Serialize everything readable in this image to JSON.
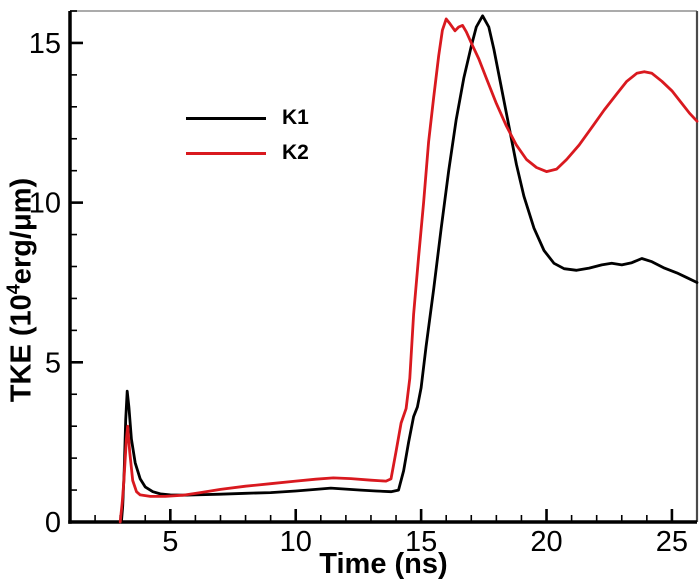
{
  "chart_data": {
    "type": "line",
    "title": "",
    "xlabel": "Time (ns)",
    "ylabel": {
      "prefix": "TKE (10",
      "sup": "4",
      "suffix": "erg/μm)"
    },
    "xlim": [
      1,
      26
    ],
    "ylim": [
      0,
      16
    ],
    "grid": false,
    "x_major_ticks": [
      {
        "value": 5,
        "label": "5"
      },
      {
        "value": 10,
        "label": "10"
      },
      {
        "value": 15,
        "label": "15"
      },
      {
        "value": 20,
        "label": "20"
      },
      {
        "value": 25,
        "label": "25"
      }
    ],
    "x_minor_ticks": [
      2,
      3,
      4,
      6,
      7,
      8,
      9,
      11,
      12,
      13,
      14,
      16,
      17,
      18,
      19,
      21,
      22,
      23,
      24
    ],
    "y_major_ticks": [
      {
        "value": 0,
        "label": "0"
      },
      {
        "value": 5,
        "label": "5"
      },
      {
        "value": 10,
        "label": "10"
      },
      {
        "value": 15,
        "label": "15"
      }
    ],
    "y_minor_ticks": [
      1,
      2,
      3,
      4,
      6,
      7,
      8,
      9,
      11,
      12,
      13,
      14,
      16
    ],
    "axis_color": "#000000",
    "top_border_color": "#ababab",
    "right_border_color": "#4a4a4a",
    "legend": {
      "position": "upper-left-inside",
      "entries": [
        {
          "name": "K1",
          "color": "#000000"
        },
        {
          "name": "K2",
          "color": "#d9191f"
        }
      ]
    },
    "series": [
      {
        "name": "K1",
        "color": "#000000",
        "points": [
          [
            3.05,
            0.0
          ],
          [
            3.1,
            0.5
          ],
          [
            3.16,
            1.6
          ],
          [
            3.22,
            3.2
          ],
          [
            3.28,
            4.1
          ],
          [
            3.35,
            3.6
          ],
          [
            3.45,
            2.6
          ],
          [
            3.6,
            1.85
          ],
          [
            3.8,
            1.35
          ],
          [
            4.0,
            1.1
          ],
          [
            4.3,
            0.95
          ],
          [
            4.6,
            0.88
          ],
          [
            5.0,
            0.85
          ],
          [
            5.5,
            0.84
          ],
          [
            6.0,
            0.85
          ],
          [
            7.0,
            0.87
          ],
          [
            8.0,
            0.9
          ],
          [
            9.0,
            0.92
          ],
          [
            10.0,
            0.97
          ],
          [
            10.8,
            1.02
          ],
          [
            11.4,
            1.06
          ],
          [
            12.0,
            1.03
          ],
          [
            12.6,
            1.0
          ],
          [
            13.2,
            0.97
          ],
          [
            13.8,
            0.95
          ],
          [
            14.1,
            1.0
          ],
          [
            14.3,
            1.6
          ],
          [
            14.5,
            2.5
          ],
          [
            14.7,
            3.3
          ],
          [
            14.85,
            3.6
          ],
          [
            15.0,
            4.2
          ],
          [
            15.2,
            5.5
          ],
          [
            15.5,
            7.3
          ],
          [
            15.8,
            9.2
          ],
          [
            16.1,
            11.0
          ],
          [
            16.4,
            12.6
          ],
          [
            16.7,
            13.9
          ],
          [
            17.0,
            14.9
          ],
          [
            17.2,
            15.5
          ],
          [
            17.45,
            15.85
          ],
          [
            17.7,
            15.5
          ],
          [
            17.9,
            14.8
          ],
          [
            18.2,
            13.6
          ],
          [
            18.5,
            12.4
          ],
          [
            18.8,
            11.2
          ],
          [
            19.1,
            10.2
          ],
          [
            19.5,
            9.2
          ],
          [
            19.9,
            8.5
          ],
          [
            20.3,
            8.1
          ],
          [
            20.7,
            7.93
          ],
          [
            21.2,
            7.88
          ],
          [
            21.7,
            7.95
          ],
          [
            22.2,
            8.05
          ],
          [
            22.6,
            8.1
          ],
          [
            23.0,
            8.05
          ],
          [
            23.4,
            8.12
          ],
          [
            23.8,
            8.25
          ],
          [
            24.2,
            8.15
          ],
          [
            24.7,
            7.95
          ],
          [
            25.2,
            7.8
          ],
          [
            25.6,
            7.65
          ],
          [
            26.0,
            7.5
          ]
        ]
      },
      {
        "name": "K2",
        "color": "#d9191f",
        "points": [
          [
            3.0,
            0.0
          ],
          [
            3.08,
            0.6
          ],
          [
            3.15,
            1.3
          ],
          [
            3.25,
            2.6
          ],
          [
            3.3,
            3.0
          ],
          [
            3.38,
            2.2
          ],
          [
            3.5,
            1.3
          ],
          [
            3.65,
            0.95
          ],
          [
            3.8,
            0.85
          ],
          [
            4.2,
            0.8
          ],
          [
            4.8,
            0.8
          ],
          [
            5.5,
            0.84
          ],
          [
            6.2,
            0.92
          ],
          [
            7.0,
            1.02
          ],
          [
            8.0,
            1.12
          ],
          [
            9.0,
            1.2
          ],
          [
            10.0,
            1.28
          ],
          [
            10.8,
            1.34
          ],
          [
            11.5,
            1.38
          ],
          [
            12.2,
            1.36
          ],
          [
            13.0,
            1.31
          ],
          [
            13.6,
            1.28
          ],
          [
            13.8,
            1.35
          ],
          [
            14.0,
            2.2
          ],
          [
            14.2,
            3.1
          ],
          [
            14.4,
            3.55
          ],
          [
            14.55,
            4.5
          ],
          [
            14.7,
            6.5
          ],
          [
            14.9,
            8.3
          ],
          [
            15.1,
            10.0
          ],
          [
            15.3,
            11.9
          ],
          [
            15.5,
            13.3
          ],
          [
            15.7,
            14.6
          ],
          [
            15.85,
            15.4
          ],
          [
            16.0,
            15.75
          ],
          [
            16.15,
            15.6
          ],
          [
            16.35,
            15.38
          ],
          [
            16.5,
            15.5
          ],
          [
            16.65,
            15.55
          ],
          [
            16.8,
            15.35
          ],
          [
            17.0,
            15.0
          ],
          [
            17.3,
            14.5
          ],
          [
            17.6,
            13.9
          ],
          [
            18.0,
            13.1
          ],
          [
            18.4,
            12.4
          ],
          [
            18.8,
            11.8
          ],
          [
            19.2,
            11.35
          ],
          [
            19.6,
            11.1
          ],
          [
            20.0,
            10.97
          ],
          [
            20.4,
            11.05
          ],
          [
            20.8,
            11.35
          ],
          [
            21.3,
            11.8
          ],
          [
            21.8,
            12.35
          ],
          [
            22.3,
            12.9
          ],
          [
            22.8,
            13.4
          ],
          [
            23.2,
            13.8
          ],
          [
            23.6,
            14.05
          ],
          [
            23.9,
            14.1
          ],
          [
            24.2,
            14.05
          ],
          [
            24.6,
            13.8
          ],
          [
            25.0,
            13.5
          ],
          [
            25.4,
            13.1
          ],
          [
            25.7,
            12.8
          ],
          [
            26.0,
            12.55
          ]
        ]
      }
    ]
  }
}
